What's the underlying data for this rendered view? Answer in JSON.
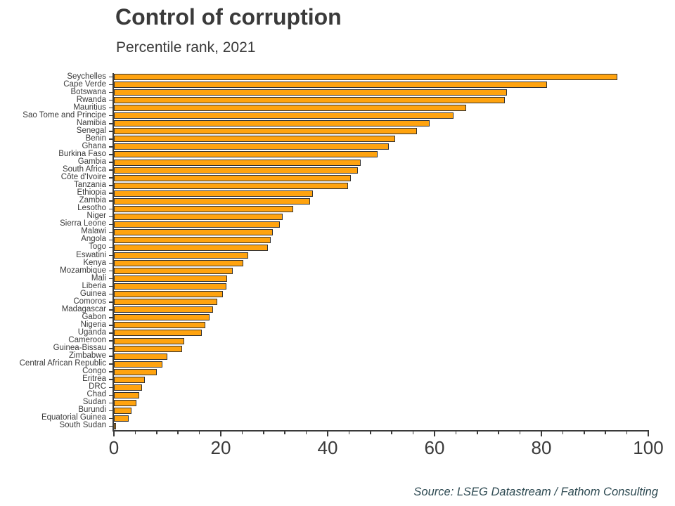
{
  "header": {
    "title": "Control of corruption",
    "subtitle": "Percentile rank, 2021"
  },
  "footer": {
    "source": "Source: LSEG Datastream / Fathom Consulting"
  },
  "colors": {
    "bar_fill": "#ffa30f",
    "bar_border": "#333333",
    "axis": "#3a3a3a",
    "text": "#3a3a3a",
    "source_text": "#2e4a52"
  },
  "chart_data": {
    "type": "bar",
    "orientation": "horizontal",
    "title": "Control of corruption",
    "subtitle": "Percentile rank, 2021",
    "xlabel": "",
    "ylabel": "",
    "xlim": [
      0,
      100
    ],
    "xticks": [
      0,
      20,
      40,
      60,
      80,
      100
    ],
    "minor_tick_step": 4,
    "grid": false,
    "legend": false,
    "categories": [
      "Seychelles",
      "Cape Verde",
      "Botswana",
      "Rwanda",
      "Mauritius",
      "Sao Tome and Principe",
      "Namibia",
      "Senegal",
      "Benin",
      "Ghana",
      "Burkina Faso",
      "Gambia",
      "South Africa",
      "Côte d'Ivoire",
      "Tanzania",
      "Ethiopia",
      "Zambia",
      "Lesotho",
      "Niger",
      "Sierra Leone",
      "Malawi",
      "Angola",
      "Togo",
      "Eswatini",
      "Kenya",
      "Mozambique",
      "Mali",
      "Liberia",
      "Guinea",
      "Comoros",
      "Madagascar",
      "Gabon",
      "Nigeria",
      "Uganda",
      "Cameroon",
      "Guinea-Bissau",
      "Zimbabwe",
      "Central African Republic",
      "Congo",
      "Eritrea",
      "DRC",
      "Chad",
      "Sudan",
      "Burundi",
      "Equatorial Guinea",
      "South Sudan"
    ],
    "values": [
      94.2,
      81.1,
      73.6,
      73.1,
      65.9,
      63.5,
      59.1,
      56.7,
      52.6,
      51.4,
      49.4,
      46.2,
      45.7,
      44.3,
      43.8,
      37.3,
      36.7,
      33.6,
      31.6,
      31.1,
      29.8,
      29.3,
      28.8,
      25.1,
      24.2,
      22.2,
      21.2,
      21.0,
      20.4,
      19.3,
      18.5,
      17.9,
      17.1,
      16.5,
      13.2,
      12.8,
      10.0,
      9.1,
      8.0,
      5.8,
      5.2,
      4.8,
      4.2,
      3.3,
      2.8,
      0.4
    ]
  }
}
